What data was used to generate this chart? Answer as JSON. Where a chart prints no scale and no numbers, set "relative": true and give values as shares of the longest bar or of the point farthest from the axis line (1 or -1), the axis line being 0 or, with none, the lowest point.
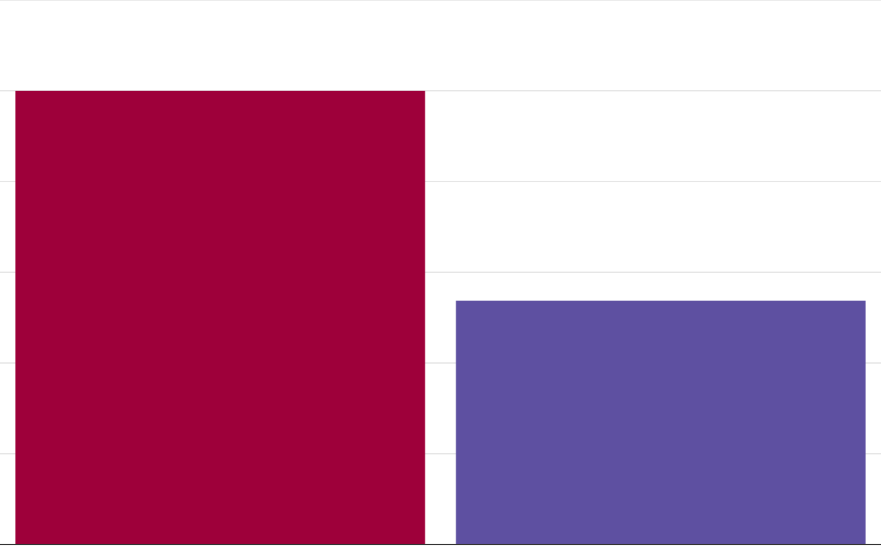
{
  "chart_data": {
    "type": "bar",
    "categories": [
      null,
      null
    ],
    "values": [
      1,
      0.537
    ],
    "colors": [
      "#9e003a",
      "#5e50a1"
    ],
    "relative": true,
    "grid": "y"
  }
}
